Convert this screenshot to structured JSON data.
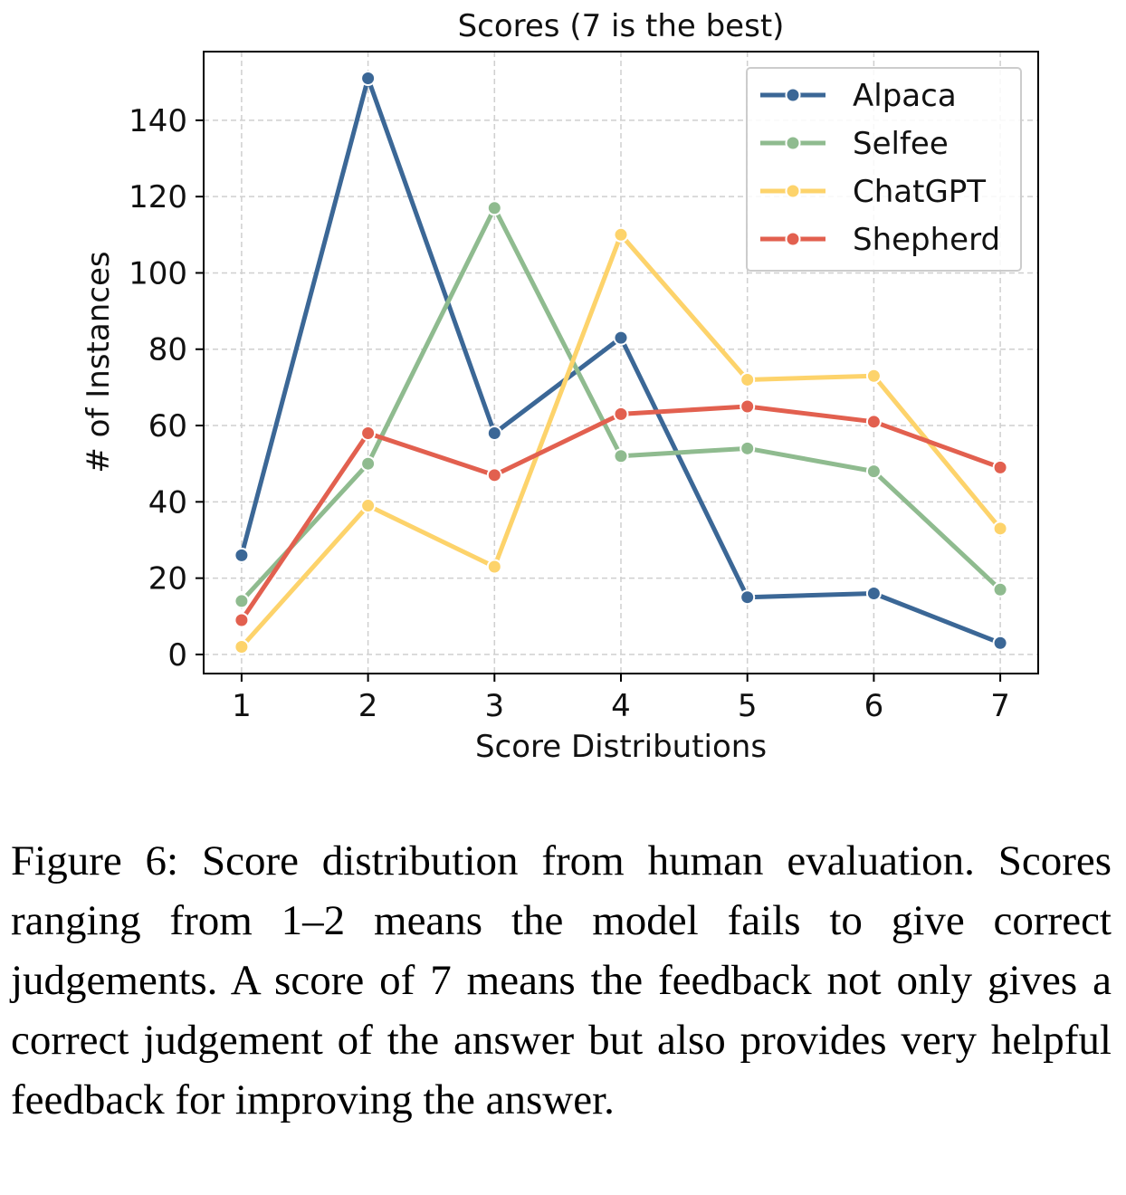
{
  "chart_data": {
    "type": "line",
    "title": "Scores (7 is the best)",
    "xlabel": "Score Distributions",
    "ylabel": "# of Instances",
    "x": [
      1,
      2,
      3,
      4,
      5,
      6,
      7
    ],
    "xlim": [
      0.7,
      7.3
    ],
    "ylim": [
      -5,
      158
    ],
    "yticks": [
      0,
      20,
      40,
      60,
      80,
      100,
      120,
      140
    ],
    "grid": true,
    "legend_position": "top-right",
    "series": [
      {
        "name": "Alpaca",
        "color": "#3b6796",
        "values": [
          26,
          151,
          58,
          83,
          15,
          16,
          3
        ]
      },
      {
        "name": "Selfee",
        "color": "#8fbb8f",
        "values": [
          14,
          50,
          117,
          52,
          54,
          48,
          17
        ]
      },
      {
        "name": "ChatGPT",
        "color": "#fdd36b",
        "values": [
          2,
          39,
          23,
          110,
          72,
          73,
          33
        ]
      },
      {
        "name": "Shepherd",
        "color": "#e2604f",
        "values": [
          9,
          58,
          47,
          63,
          65,
          61,
          49
        ]
      }
    ]
  },
  "caption": {
    "text": "Figure 6: Score distribution from human evaluation. Scores ranging from 1–2 means the model fails to give correct judgements. A score of 7 means the feedback not only gives a correct judgement of the answer but also provides very helpful feedback for improving the answer."
  }
}
